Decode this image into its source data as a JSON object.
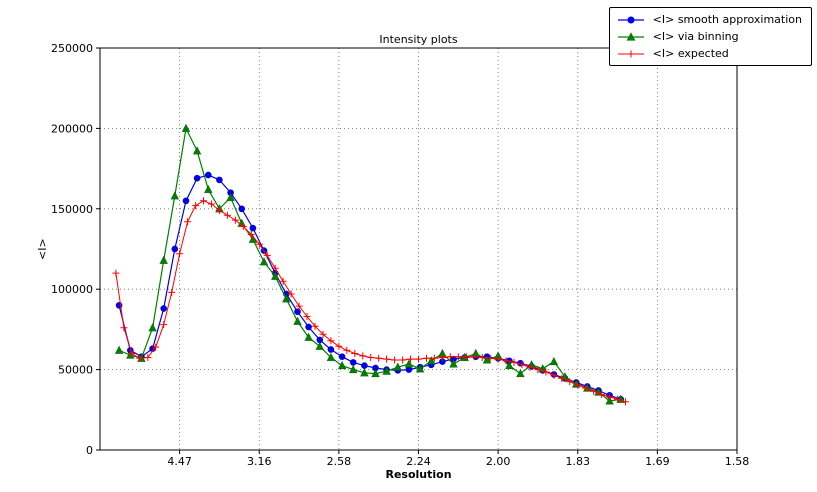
{
  "chart_data": {
    "type": "line",
    "title": "Intensity plots",
    "xlabel": "Resolution",
    "ylabel": "<I>",
    "xlim": [
      0,
      0.4
    ],
    "ylim": [
      0,
      250000
    ],
    "grid": true,
    "legend_position": "upper right, outside axes",
    "xticks": [
      {
        "pos": 0.05,
        "label": "4.47"
      },
      {
        "pos": 0.1,
        "label": "3.16"
      },
      {
        "pos": 0.15,
        "label": "2.58"
      },
      {
        "pos": 0.2,
        "label": "2.24"
      },
      {
        "pos": 0.25,
        "label": "2.00"
      },
      {
        "pos": 0.3,
        "label": "1.83"
      },
      {
        "pos": 0.35,
        "label": "1.69"
      },
      {
        "pos": 0.4,
        "label": "1.58"
      }
    ],
    "yticks": [
      {
        "value": 0,
        "label": "0"
      },
      {
        "value": 50000,
        "label": "50000"
      },
      {
        "value": 100000,
        "label": "100000"
      },
      {
        "value": 150000,
        "label": "150000"
      },
      {
        "value": 200000,
        "label": "200000"
      },
      {
        "value": 250000,
        "label": "250000"
      }
    ],
    "series": [
      {
        "name": "<I> smooth approximation",
        "slug": "smooth-approximation",
        "color": "#0000ee",
        "marker": "circle",
        "line_width": 1.2,
        "x": [
          0.012,
          0.019,
          0.026,
          0.033,
          0.04,
          0.047,
          0.054,
          0.061,
          0.068,
          0.075,
          0.082,
          0.089,
          0.096,
          0.103,
          0.11,
          0.117,
          0.124,
          0.131,
          0.138,
          0.145,
          0.152,
          0.159,
          0.166,
          0.173,
          0.18,
          0.187,
          0.194,
          0.201,
          0.208,
          0.215,
          0.222,
          0.229,
          0.236,
          0.243,
          0.25,
          0.257,
          0.264,
          0.271,
          0.278,
          0.285,
          0.292,
          0.299,
          0.306,
          0.313,
          0.32,
          0.327
        ],
        "y": [
          90000,
          62000,
          58000,
          63000,
          88000,
          125000,
          155000,
          169000,
          171000,
          168000,
          160000,
          150000,
          138000,
          124000,
          110000,
          97000,
          86000,
          76500,
          68500,
          62500,
          58000,
          54500,
          52500,
          51000,
          50000,
          49500,
          50000,
          51500,
          53000,
          55000,
          56500,
          57500,
          58000,
          58000,
          57000,
          55500,
          54000,
          52000,
          49500,
          47000,
          44500,
          42000,
          39500,
          37000,
          34000,
          31500
        ]
      },
      {
        "name": "<I> via binning",
        "slug": "via-binning",
        "color": "#008000",
        "marker": "triangle",
        "line_width": 1.2,
        "x": [
          0.012,
          0.019,
          0.026,
          0.033,
          0.04,
          0.047,
          0.054,
          0.061,
          0.068,
          0.075,
          0.082,
          0.089,
          0.096,
          0.103,
          0.11,
          0.117,
          0.124,
          0.131,
          0.138,
          0.145,
          0.152,
          0.159,
          0.166,
          0.173,
          0.18,
          0.187,
          0.194,
          0.201,
          0.208,
          0.215,
          0.222,
          0.229,
          0.236,
          0.243,
          0.25,
          0.257,
          0.264,
          0.271,
          0.278,
          0.285,
          0.292,
          0.299,
          0.306,
          0.313,
          0.32,
          0.327
        ],
        "y": [
          62000,
          59000,
          57000,
          76000,
          118000,
          158000,
          200000,
          186000,
          162000,
          150000,
          157000,
          141000,
          131000,
          117000,
          108000,
          94000,
          80000,
          70000,
          64500,
          57500,
          52500,
          50000,
          48000,
          47500,
          49000,
          51500,
          53500,
          50500,
          55500,
          60000,
          53500,
          57500,
          60000,
          56000,
          58500,
          52500,
          47500,
          53000,
          50500,
          55000,
          45500,
          41000,
          38500,
          36000,
          30500,
          31500
        ]
      },
      {
        "name": "<I> expected",
        "slug": "expected",
        "color": "#ff0000",
        "marker": "plus",
        "line_width": 1,
        "x": [
          0.01,
          0.015,
          0.02,
          0.025,
          0.03,
          0.035,
          0.04,
          0.045,
          0.05,
          0.055,
          0.06,
          0.065,
          0.07,
          0.075,
          0.08,
          0.085,
          0.09,
          0.095,
          0.1,
          0.105,
          0.11,
          0.115,
          0.12,
          0.125,
          0.13,
          0.135,
          0.14,
          0.145,
          0.15,
          0.155,
          0.16,
          0.165,
          0.17,
          0.175,
          0.18,
          0.185,
          0.19,
          0.195,
          0.2,
          0.205,
          0.21,
          0.215,
          0.22,
          0.225,
          0.23,
          0.235,
          0.24,
          0.245,
          0.25,
          0.255,
          0.26,
          0.265,
          0.27,
          0.275,
          0.28,
          0.285,
          0.29,
          0.295,
          0.3,
          0.305,
          0.31,
          0.315,
          0.32,
          0.325,
          0.33
        ],
        "y": [
          110000,
          76000,
          60000,
          57000,
          57500,
          64000,
          78000,
          98000,
          122000,
          142000,
          152000,
          155000,
          153000,
          149000,
          146000,
          143000,
          139000,
          134000,
          128000,
          121000,
          113000,
          105000,
          97000,
          89500,
          83000,
          77000,
          72000,
          68000,
          64500,
          62000,
          60000,
          58500,
          57500,
          57000,
          56500,
          56000,
          56000,
          56500,
          56500,
          57000,
          57000,
          57500,
          58000,
          58000,
          58000,
          58000,
          57500,
          57000,
          56500,
          55500,
          54500,
          53000,
          51500,
          50000,
          48500,
          46500,
          44500,
          42500,
          40500,
          38500,
          36500,
          34500,
          33000,
          31500,
          30000
        ]
      }
    ]
  }
}
